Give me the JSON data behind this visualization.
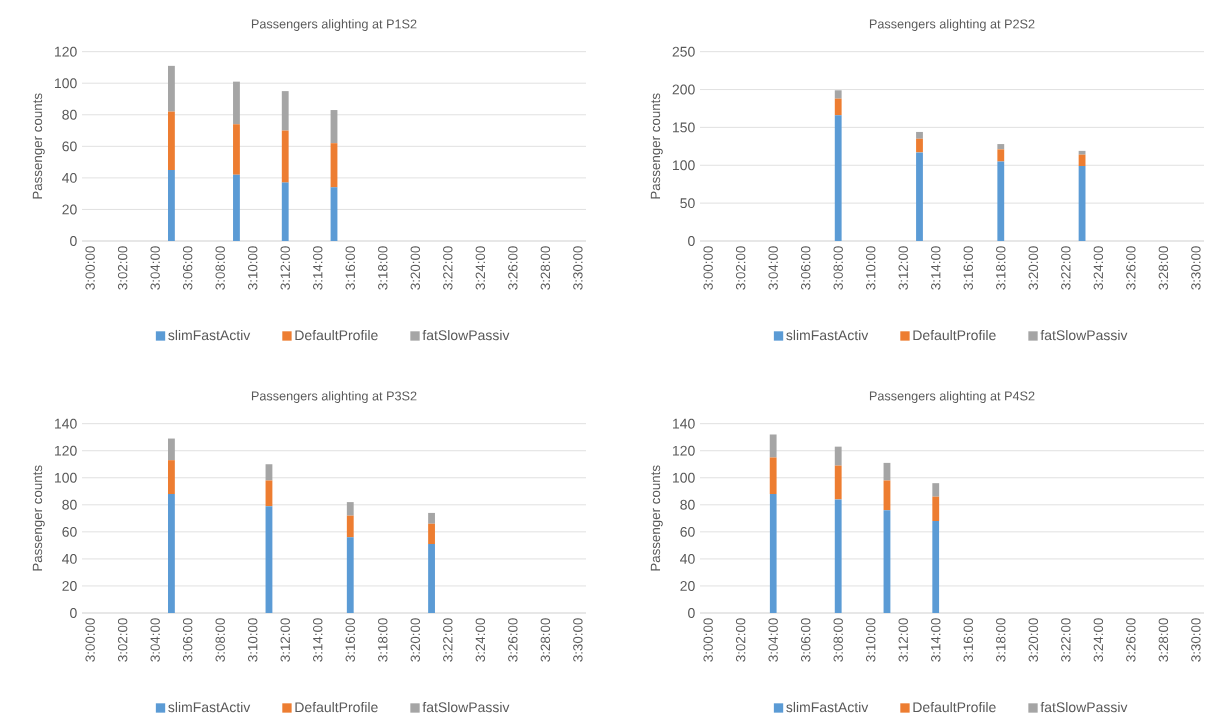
{
  "chart_data": [
    {
      "type": "bar",
      "stacked": true,
      "title": "Passengers alighting at P1S2",
      "ylabel": "Passenger counts",
      "categories": [
        "3:00:00",
        null,
        "3:02:00",
        null,
        "3:04:00",
        null,
        "3:06:00",
        null,
        "3:08:00",
        null,
        "3:10:00",
        null,
        "3:12:00",
        null,
        "3:14:00",
        null,
        "3:16:00",
        null,
        "3:18:00",
        null,
        "3:20:00",
        null,
        "3:22:00",
        null,
        "3:24:00",
        null,
        "3:26:00",
        null,
        "3:28:00",
        null,
        "3:30:00"
      ],
      "ylim": [
        0,
        120
      ],
      "yticks": [
        0,
        20,
        40,
        60,
        80,
        100,
        120
      ],
      "grid": "y",
      "legend": "bottom",
      "series": [
        {
          "name": "slimFastActiv",
          "color": "#5b9bd5",
          "values": [
            null,
            null,
            null,
            null,
            null,
            45,
            null,
            null,
            null,
            42,
            null,
            null,
            37,
            null,
            null,
            34,
            null,
            null,
            null,
            null,
            null,
            null,
            null,
            null,
            null,
            null,
            null,
            null,
            null,
            null,
            null
          ]
        },
        {
          "name": "DefaultProfile",
          "color": "#ed7d31",
          "values": [
            null,
            null,
            null,
            null,
            null,
            37,
            null,
            null,
            null,
            32,
            null,
            null,
            33,
            null,
            null,
            28,
            null,
            null,
            null,
            null,
            null,
            null,
            null,
            null,
            null,
            null,
            null,
            null,
            null,
            null,
            null
          ]
        },
        {
          "name": "fatSlowPassiv",
          "color": "#a5a5a5",
          "values": [
            null,
            null,
            null,
            null,
            null,
            29,
            null,
            null,
            null,
            27,
            null,
            null,
            25,
            null,
            null,
            21,
            null,
            null,
            null,
            null,
            null,
            null,
            null,
            null,
            null,
            null,
            null,
            null,
            null,
            null,
            null
          ]
        }
      ]
    },
    {
      "type": "bar",
      "stacked": true,
      "title": "Passengers alighting at P2S2",
      "ylabel": "Passenger counts",
      "categories": [
        "3:00:00",
        null,
        "3:02:00",
        null,
        "3:04:00",
        null,
        "3:06:00",
        null,
        "3:08:00",
        null,
        "3:10:00",
        null,
        "3:12:00",
        null,
        "3:14:00",
        null,
        "3:16:00",
        null,
        "3:18:00",
        null,
        "3:20:00",
        null,
        "3:22:00",
        null,
        "3:24:00",
        null,
        "3:26:00",
        null,
        "3:28:00",
        null,
        "3:30:00"
      ],
      "ylim": [
        0,
        250
      ],
      "yticks": [
        0,
        50,
        100,
        150,
        200,
        250
      ],
      "grid": "y",
      "legend": "bottom",
      "series": [
        {
          "name": "slimFastActiv",
          "color": "#5b9bd5",
          "values": [
            null,
            null,
            null,
            null,
            null,
            null,
            null,
            null,
            166,
            null,
            null,
            null,
            null,
            117,
            null,
            null,
            null,
            null,
            105,
            null,
            null,
            null,
            null,
            99,
            null,
            null,
            null,
            null,
            null,
            null,
            null
          ]
        },
        {
          "name": "DefaultProfile",
          "color": "#ed7d31",
          "values": [
            null,
            null,
            null,
            null,
            null,
            null,
            null,
            null,
            22,
            null,
            null,
            null,
            null,
            18,
            null,
            null,
            null,
            null,
            16,
            null,
            null,
            null,
            null,
            15,
            null,
            null,
            null,
            null,
            null,
            null,
            null
          ]
        },
        {
          "name": "fatSlowPassiv",
          "color": "#a5a5a5",
          "values": [
            null,
            null,
            null,
            null,
            null,
            null,
            null,
            null,
            11,
            null,
            null,
            null,
            null,
            9,
            null,
            null,
            null,
            null,
            7,
            null,
            null,
            null,
            null,
            5,
            null,
            null,
            null,
            null,
            null,
            null,
            null
          ]
        }
      ]
    },
    {
      "type": "bar",
      "stacked": true,
      "title": "Passengers alighting at P3S2",
      "ylabel": "Passenger counts",
      "categories": [
        "3:00:00",
        null,
        "3:02:00",
        null,
        "3:04:00",
        null,
        "3:06:00",
        null,
        "3:08:00",
        null,
        "3:10:00",
        null,
        "3:12:00",
        null,
        "3:14:00",
        null,
        "3:16:00",
        null,
        "3:18:00",
        null,
        "3:20:00",
        null,
        "3:22:00",
        null,
        "3:24:00",
        null,
        "3:26:00",
        null,
        "3:28:00",
        null,
        "3:30:00"
      ],
      "ylim": [
        0,
        140
      ],
      "yticks": [
        0,
        20,
        40,
        60,
        80,
        100,
        120,
        140
      ],
      "grid": "y",
      "legend": "bottom",
      "series": [
        {
          "name": "slimFastActiv",
          "color": "#5b9bd5",
          "values": [
            null,
            null,
            null,
            null,
            null,
            88,
            null,
            null,
            null,
            null,
            null,
            79,
            null,
            null,
            null,
            null,
            56,
            null,
            null,
            null,
            null,
            51,
            null,
            null,
            null,
            null,
            null,
            null,
            null,
            null,
            null
          ]
        },
        {
          "name": "DefaultProfile",
          "color": "#ed7d31",
          "values": [
            null,
            null,
            null,
            null,
            null,
            25,
            null,
            null,
            null,
            null,
            null,
            19,
            null,
            null,
            null,
            null,
            16,
            null,
            null,
            null,
            null,
            15,
            null,
            null,
            null,
            null,
            null,
            null,
            null,
            null,
            null
          ]
        },
        {
          "name": "fatSlowPassiv",
          "color": "#a5a5a5",
          "values": [
            null,
            null,
            null,
            null,
            null,
            16,
            null,
            null,
            null,
            null,
            null,
            12,
            null,
            null,
            null,
            null,
            10,
            null,
            null,
            null,
            null,
            8,
            null,
            null,
            null,
            null,
            null,
            null,
            null,
            null,
            null
          ]
        }
      ]
    },
    {
      "type": "bar",
      "stacked": true,
      "title": "Passengers alighting at P4S2",
      "ylabel": "Passenger counts",
      "categories": [
        "3:00:00",
        null,
        "3:02:00",
        null,
        "3:04:00",
        null,
        "3:06:00",
        null,
        "3:08:00",
        null,
        "3:10:00",
        null,
        "3:12:00",
        null,
        "3:14:00",
        null,
        "3:16:00",
        null,
        "3:18:00",
        null,
        "3:20:00",
        null,
        "3:22:00",
        null,
        "3:24:00",
        null,
        "3:26:00",
        null,
        "3:28:00",
        null,
        "3:30:00"
      ],
      "ylim": [
        0,
        140
      ],
      "yticks": [
        0,
        20,
        40,
        60,
        80,
        100,
        120,
        140
      ],
      "grid": "y",
      "legend": "bottom",
      "series": [
        {
          "name": "slimFastActiv",
          "color": "#5b9bd5",
          "values": [
            null,
            null,
            null,
            null,
            88,
            null,
            null,
            null,
            84,
            null,
            null,
            76,
            null,
            null,
            68,
            null,
            null,
            null,
            null,
            null,
            null,
            null,
            null,
            null,
            null,
            null,
            null,
            null,
            null,
            null,
            null
          ]
        },
        {
          "name": "DefaultProfile",
          "color": "#ed7d31",
          "values": [
            null,
            null,
            null,
            null,
            27,
            null,
            null,
            null,
            25,
            null,
            null,
            22,
            null,
            null,
            18,
            null,
            null,
            null,
            null,
            null,
            null,
            null,
            null,
            null,
            null,
            null,
            null,
            null,
            null,
            null,
            null
          ]
        },
        {
          "name": "fatSlowPassiv",
          "color": "#a5a5a5",
          "values": [
            null,
            null,
            null,
            null,
            17,
            null,
            null,
            null,
            14,
            null,
            null,
            13,
            null,
            null,
            10,
            null,
            null,
            null,
            null,
            null,
            null,
            null,
            null,
            null,
            null,
            null,
            null,
            null,
            null,
            null,
            null
          ]
        }
      ]
    }
  ]
}
